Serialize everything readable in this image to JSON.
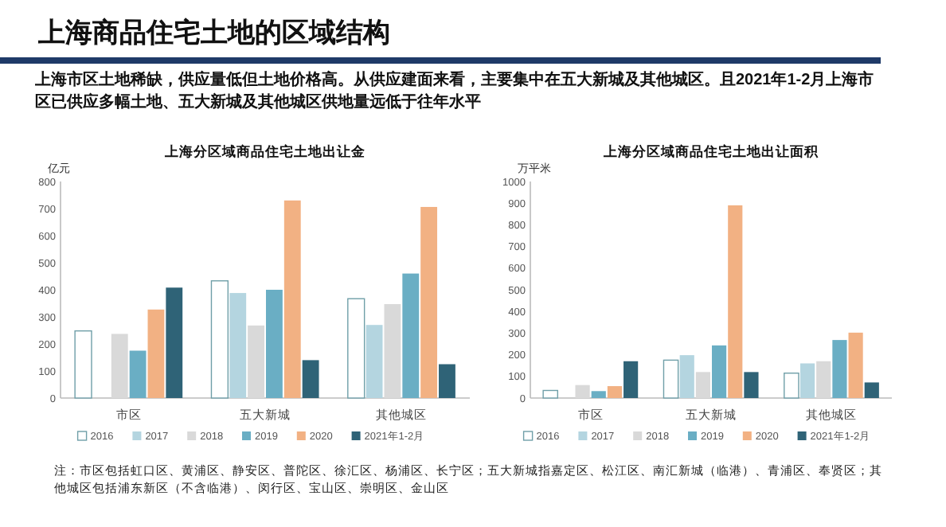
{
  "chart_data": [
    {
      "type": "other",
      "title": "上海商品住宅土地的区域结构",
      "subtitle": "上海市区土地稀缺，供应量低但土地价格高。从供应建面来看，主要集中在五大新城及其他城区。且2021年1-2月上海市区已供应多幅土地、五大新城及其他城区供地量远低于往年水平",
      "annotations": [
        "注：市区包括虹口区、黄浦区、静安区、普陀区、徐汇区、杨浦区、长宁区；五大新城指嘉定区、松江区、南汇新城（临港）、青浦区、奉贤区；其他城区包括浦东新区（不含临港）、闵行区、宝山区、崇明区、金山区"
      ]
    },
    {
      "type": "bar",
      "title": "上海分区域商品住宅土地出让金",
      "ylabel": "亿元",
      "categories": [
        "市区",
        "五大新城",
        "其他城区"
      ],
      "ylim": [
        0,
        800
      ],
      "yticks": [
        0,
        100,
        200,
        300,
        400,
        500,
        600,
        700,
        800
      ],
      "legend": "bottom",
      "grid": false,
      "series": [
        {
          "name": "2016",
          "color": "#ffffff",
          "values": [
            248,
            433,
            367
          ]
        },
        {
          "name": "2017",
          "color": "#b4d5e0",
          "values": [
            null,
            388,
            270
          ]
        },
        {
          "name": "2018",
          "color": "#d9d9d9",
          "values": [
            237,
            268,
            347
          ]
        },
        {
          "name": "2019",
          "color": "#6aaec4",
          "values": [
            175,
            400,
            460
          ]
        },
        {
          "name": "2020",
          "color": "#f2b183",
          "values": [
            327,
            730,
            706
          ]
        },
        {
          "name": "2021年1-2月",
          "color": "#2f6377",
          "values": [
            408,
            140,
            125
          ]
        }
      ]
    },
    {
      "type": "bar",
      "title": "上海分区域商品住宅土地出让面积",
      "ylabel": "万平米",
      "categories": [
        "市区",
        "五大新城",
        "其他城区"
      ],
      "ylim": [
        0,
        1000
      ],
      "yticks": [
        0,
        100,
        200,
        300,
        400,
        500,
        600,
        700,
        800,
        900,
        1000
      ],
      "legend": "bottom",
      "grid": false,
      "series": [
        {
          "name": "2016",
          "color": "#ffffff",
          "values": [
            35,
            175,
            115
          ]
        },
        {
          "name": "2017",
          "color": "#b4d5e0",
          "values": [
            null,
            198,
            160
          ]
        },
        {
          "name": "2018",
          "color": "#d9d9d9",
          "values": [
            60,
            120,
            170
          ]
        },
        {
          "name": "2019",
          "color": "#6aaec4",
          "values": [
            32,
            243,
            268
          ]
        },
        {
          "name": "2020",
          "color": "#f2b183",
          "values": [
            55,
            890,
            302
          ]
        },
        {
          "name": "2021年1-2月",
          "color": "#2f6377",
          "values": [
            170,
            120,
            72
          ]
        }
      ]
    }
  ]
}
